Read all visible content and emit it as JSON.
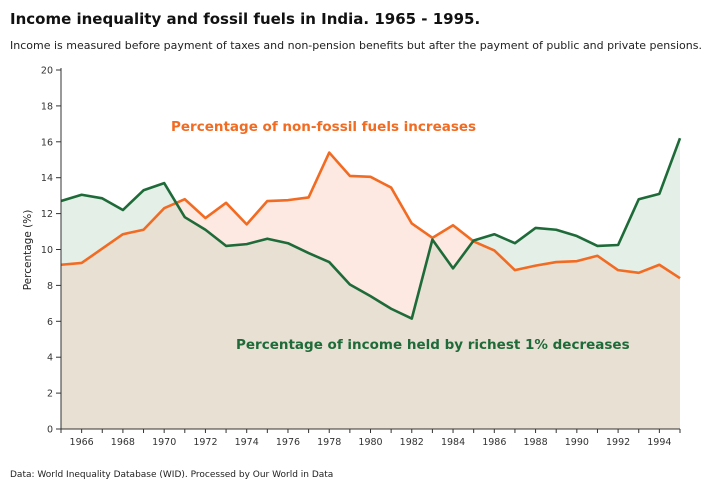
{
  "title": "Income inequality and fossil fuels in India. 1965 - 1995.",
  "subtitle": "Income is measured before payment of taxes and non-pension benefits but after the payment of public and private pensions.",
  "source": "Data: World Inequality Database (WID). Processed by Our World in Data",
  "colors": {
    "income": "#1e6b39",
    "nonfossil": "#f26b22",
    "base_fill": "#e8e0d3",
    "income_fill": "#e4efe8",
    "nonfossil_fill": "#fde9e1"
  },
  "chart_data": {
    "type": "area",
    "x": [
      1965,
      1966,
      1967,
      1968,
      1969,
      1970,
      1971,
      1972,
      1973,
      1974,
      1975,
      1976,
      1977,
      1978,
      1979,
      1980,
      1981,
      1982,
      1983,
      1984,
      1985,
      1986,
      1987,
      1988,
      1989,
      1990,
      1991,
      1992,
      1993,
      1994,
      1995
    ],
    "series": [
      {
        "key": "income",
        "values": [
          12.7,
          13.05,
          12.85,
          12.2,
          13.3,
          13.7,
          11.8,
          11.1,
          10.2,
          10.3,
          10.6,
          10.35,
          9.8,
          9.3,
          8.05,
          7.4,
          6.7,
          6.15,
          10.55,
          8.95,
          10.5,
          10.85,
          10.35,
          11.2,
          11.1,
          10.75,
          10.2,
          10.25,
          12.8,
          13.1,
          16.2
        ]
      },
      {
        "key": "nonfossil",
        "values": [
          9.15,
          9.25,
          10.05,
          10.85,
          11.1,
          12.3,
          12.8,
          11.75,
          12.6,
          11.4,
          12.7,
          12.75,
          12.9,
          15.4,
          14.1,
          14.05,
          13.45,
          11.45,
          10.65,
          11.35,
          10.45,
          9.95,
          8.85,
          9.1,
          9.3,
          9.35,
          9.65,
          8.85,
          8.7,
          9.15,
          8.4
        ]
      }
    ],
    "ylabel": "Percentage (%)",
    "ylim": [
      0,
      20
    ],
    "yticks": [
      0,
      2,
      4,
      6,
      8,
      10,
      12,
      14,
      16,
      18,
      20
    ],
    "xticks": [
      1966,
      1968,
      1970,
      1972,
      1974,
      1976,
      1978,
      1980,
      1982,
      1984,
      1986,
      1988,
      1990,
      1992,
      1994
    ],
    "annotations": [
      {
        "key": "nonfossil",
        "text": "Percentage of non-fossil fuels increases"
      },
      {
        "key": "income",
        "text": "Percentage of income held by richest 1% decreases"
      }
    ],
    "grid": false
  }
}
